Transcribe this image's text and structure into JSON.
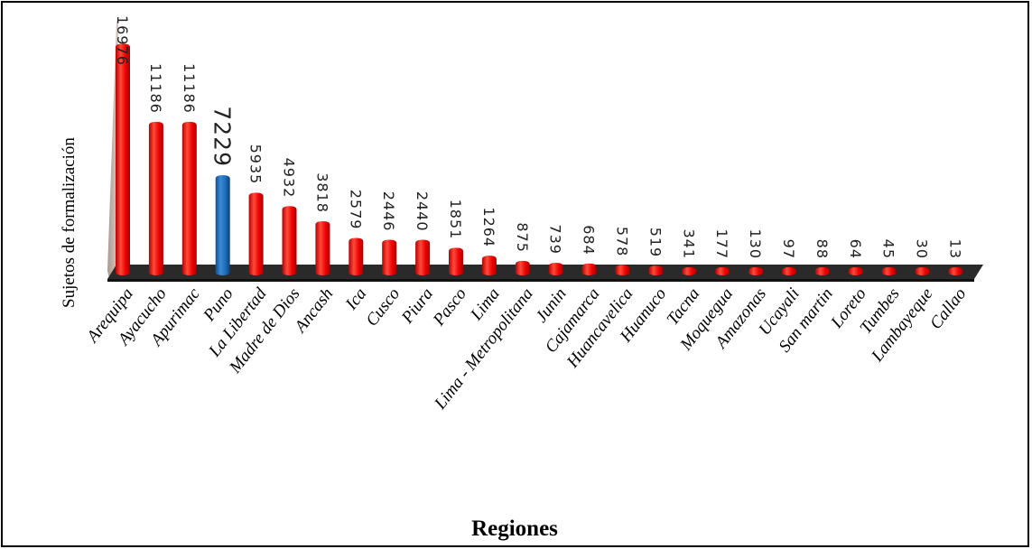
{
  "chart_data": {
    "type": "bar",
    "title": "",
    "ylabel": "Sujetos de formalización",
    "xlabel": "Regiones",
    "ylim": [
      0,
      17000
    ],
    "grid": false,
    "categories": [
      "Arequipa",
      "Ayacucho",
      "Apurimac",
      "Puno",
      "La Libertad",
      "Madre de Dios",
      "Ancash",
      "Ica",
      "Cusco",
      "Piura",
      "Pasco",
      "Lima",
      "Lima - Metropolitana",
      "Junin",
      "Cajamarca",
      "Huancavelica",
      "Huanuco",
      "Tacna",
      "Moquegua",
      "Amazonas",
      "Ucayali",
      "San martin",
      "Loreto",
      "Tumbes",
      "Lambayeque",
      "Callao"
    ],
    "values": [
      16976,
      11186,
      11186,
      7229,
      5935,
      4932,
      3818,
      2579,
      2446,
      2440,
      1851,
      1264,
      875,
      739,
      684,
      578,
      519,
      341,
      177,
      130,
      97,
      88,
      64,
      45,
      30,
      13
    ],
    "value_labels": [
      "16976",
      "11186",
      "11186",
      "7229",
      "5935",
      "4932",
      "3818",
      "2579",
      "2446",
      "2440",
      "1851",
      "1264",
      "875",
      "739",
      "684",
      "578",
      "519",
      "341",
      "177",
      "130",
      "97",
      "88",
      "64",
      "45",
      "30",
      "13"
    ],
    "highlight": "Puno",
    "colors": {
      "bar": "#ee0000",
      "bar_highlight": "#1f6bb5",
      "highlight_label": "#1f78c8",
      "floor": "#2a2a2a",
      "wall": "#c9bcb3"
    }
  }
}
